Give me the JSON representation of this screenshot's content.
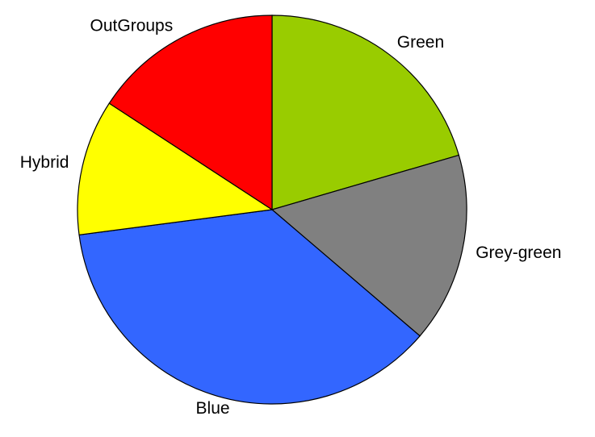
{
  "chart_data": {
    "type": "pie",
    "categories": [
      "Green",
      "Grey-green",
      "Blue",
      "Hybrid",
      "OutGroups"
    ],
    "values": [
      20.5,
      15.8,
      36.7,
      11.3,
      15.8
    ],
    "colors": [
      "#99cc00",
      "#808080",
      "#3366ff",
      "#ffff00",
      "#ff0000"
    ]
  }
}
